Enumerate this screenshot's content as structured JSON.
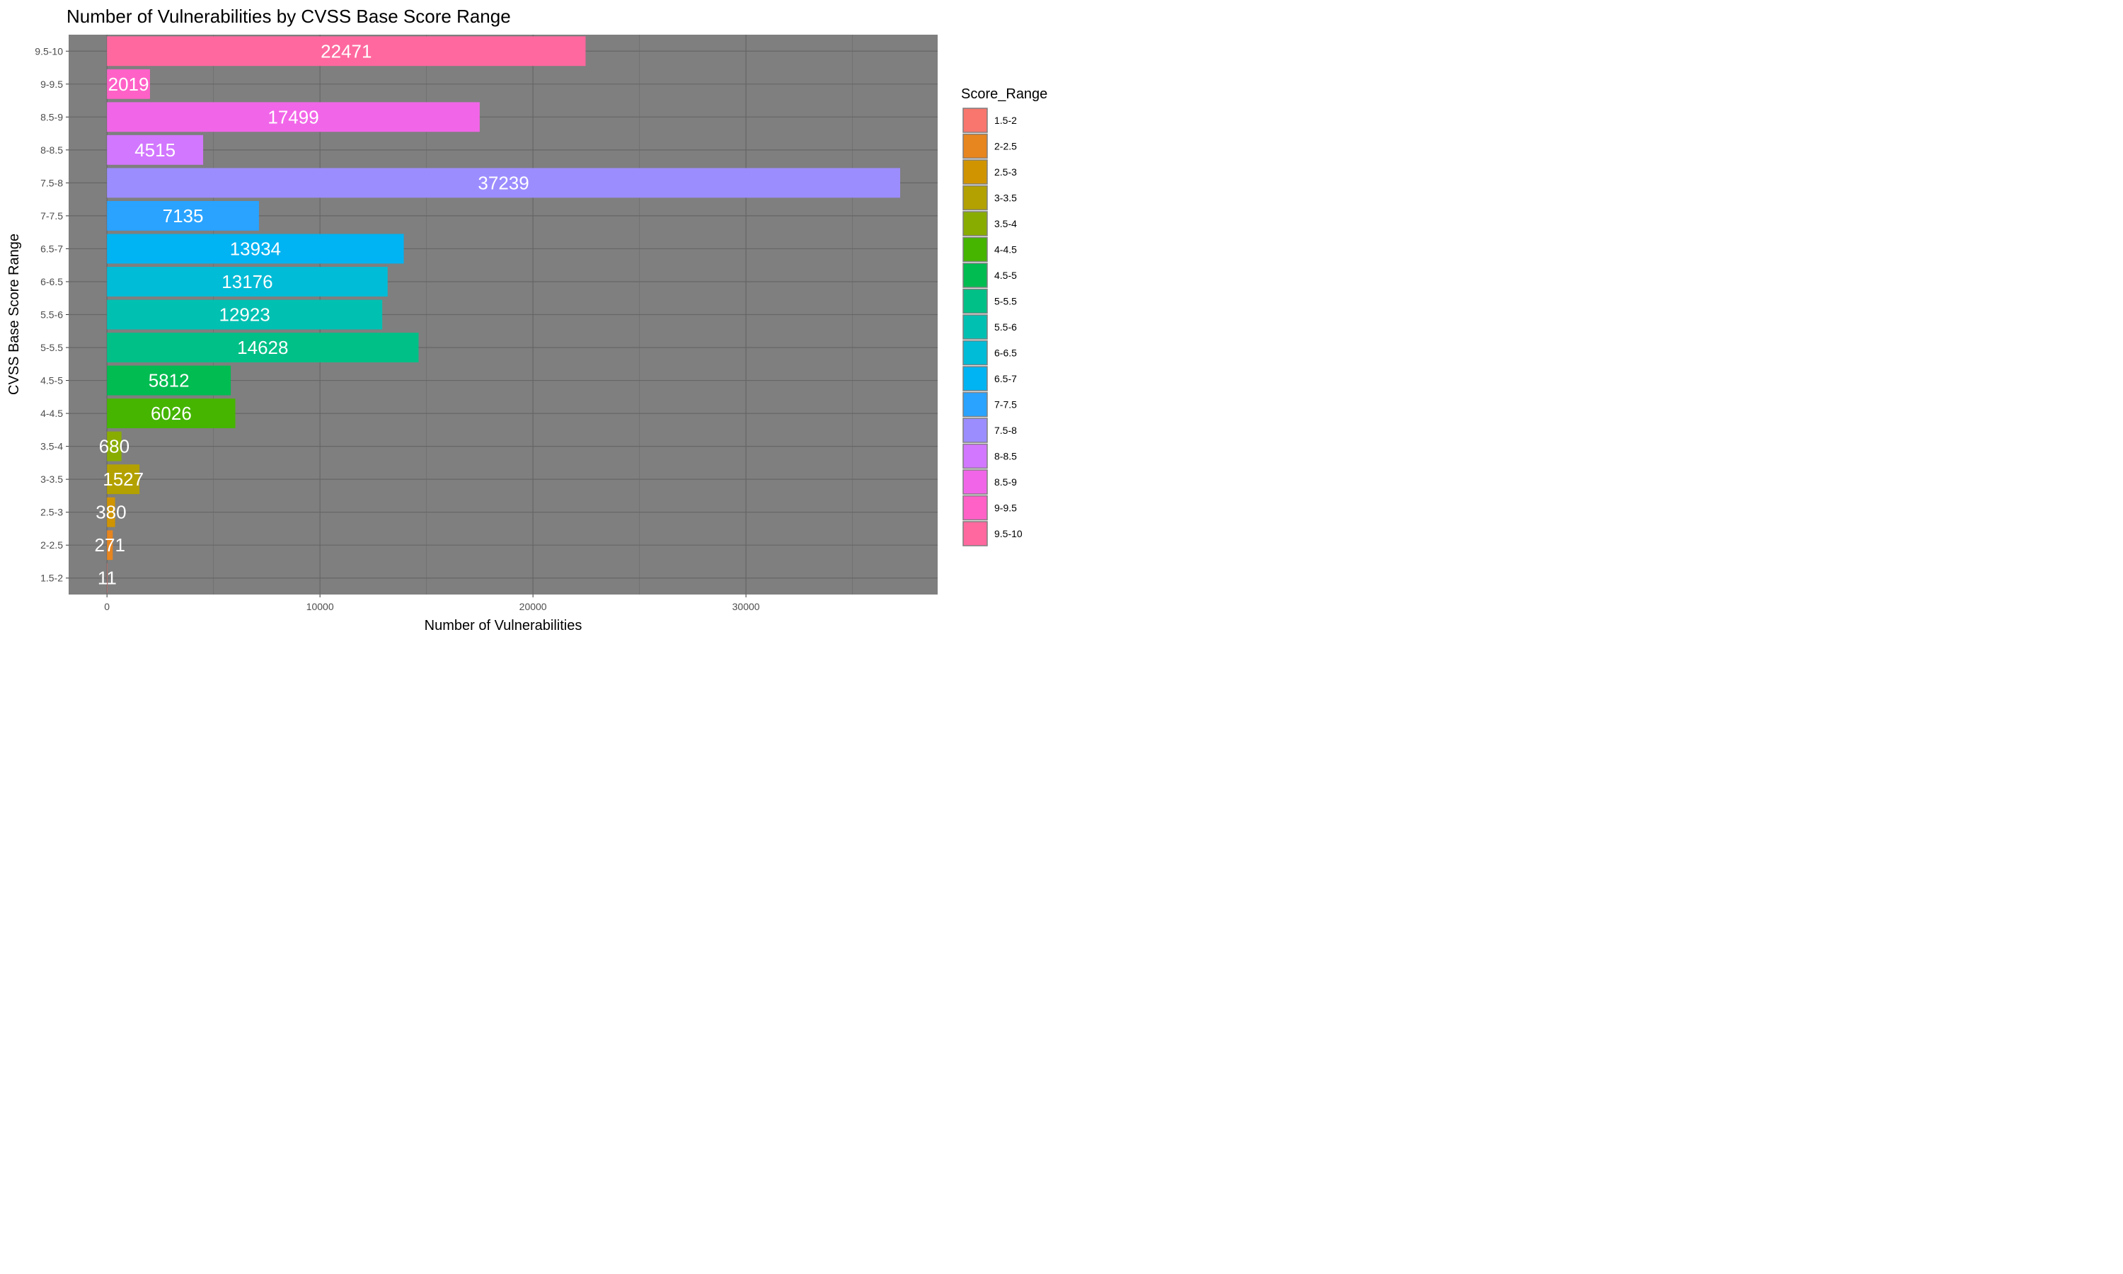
{
  "chart_data": {
    "type": "bar",
    "orientation": "horizontal",
    "title": "Number of Vulnerabilities by CVSS Base Score Range",
    "xlabel": "Number of Vulnerabilities",
    "ylabel": "CVSS Base Score Range",
    "categories": [
      "1.5-2",
      "2-2.5",
      "2.5-3",
      "3-3.5",
      "3.5-4",
      "4-4.5",
      "4.5-5",
      "5-5.5",
      "5.5-6",
      "6-6.5",
      "6.5-7",
      "7-7.5",
      "7.5-8",
      "8-8.5",
      "8.5-9",
      "9-9.5",
      "9.5-10"
    ],
    "values": [
      11,
      271,
      380,
      1527,
      680,
      6026,
      5812,
      14628,
      12923,
      13176,
      13934,
      7135,
      37239,
      4515,
      17499,
      2019,
      22471
    ],
    "colors": [
      "#F8766D",
      "#E7851E",
      "#D09400",
      "#B2A100",
      "#89AC00",
      "#45B500",
      "#00BC51",
      "#00C087",
      "#00C0B2",
      "#00BCD6",
      "#00B3F2",
      "#29A3FF",
      "#9C8DFF",
      "#D277FF",
      "#F166E8",
      "#FF61C7",
      "#FF689E"
    ],
    "xticks": [
      0,
      10000,
      20000,
      30000
    ],
    "xlim": [
      -1800,
      39000
    ],
    "legend": {
      "title": "Score_Range",
      "position": "right"
    },
    "panel_background": "#7F7F7F",
    "grid": true
  }
}
